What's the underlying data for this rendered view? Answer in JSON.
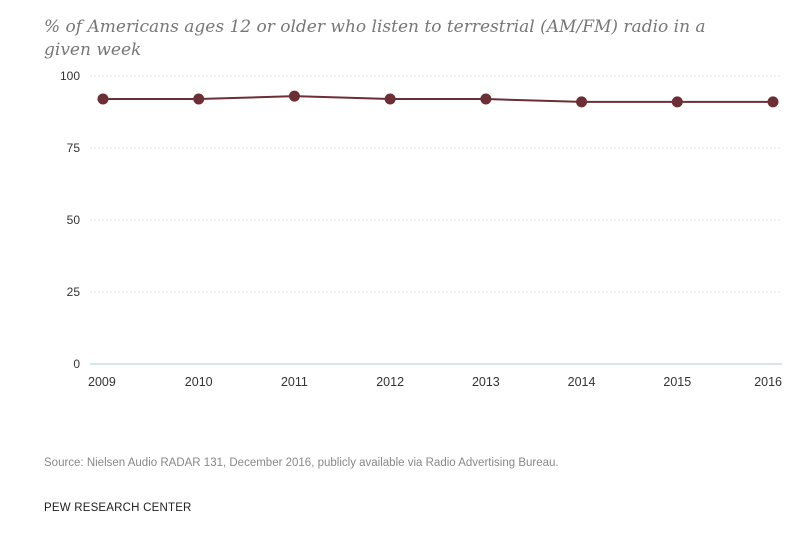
{
  "chart_data": {
    "type": "line",
    "title": "% of Americans ages 12 or older who listen to terrestrial (AM/FM) radio in a given week",
    "categories": [
      "2009",
      "2010",
      "2011",
      "2012",
      "2013",
      "2014",
      "2015",
      "2016"
    ],
    "series": [
      {
        "values": [
          92,
          92,
          93,
          92,
          92,
          91,
          91,
          91
        ],
        "color": "#6b2f35"
      }
    ],
    "ylim": [
      0,
      100
    ],
    "yticks": [
      0,
      25,
      50,
      75,
      100
    ],
    "xlabel": "",
    "ylabel": "",
    "grid": true
  },
  "footer": {
    "source": "Source: Nielsen Audio RADAR 131, December 2016, publicly available via Radio Advertising Bureau.",
    "brand": "PEW RESEARCH CENTER"
  }
}
